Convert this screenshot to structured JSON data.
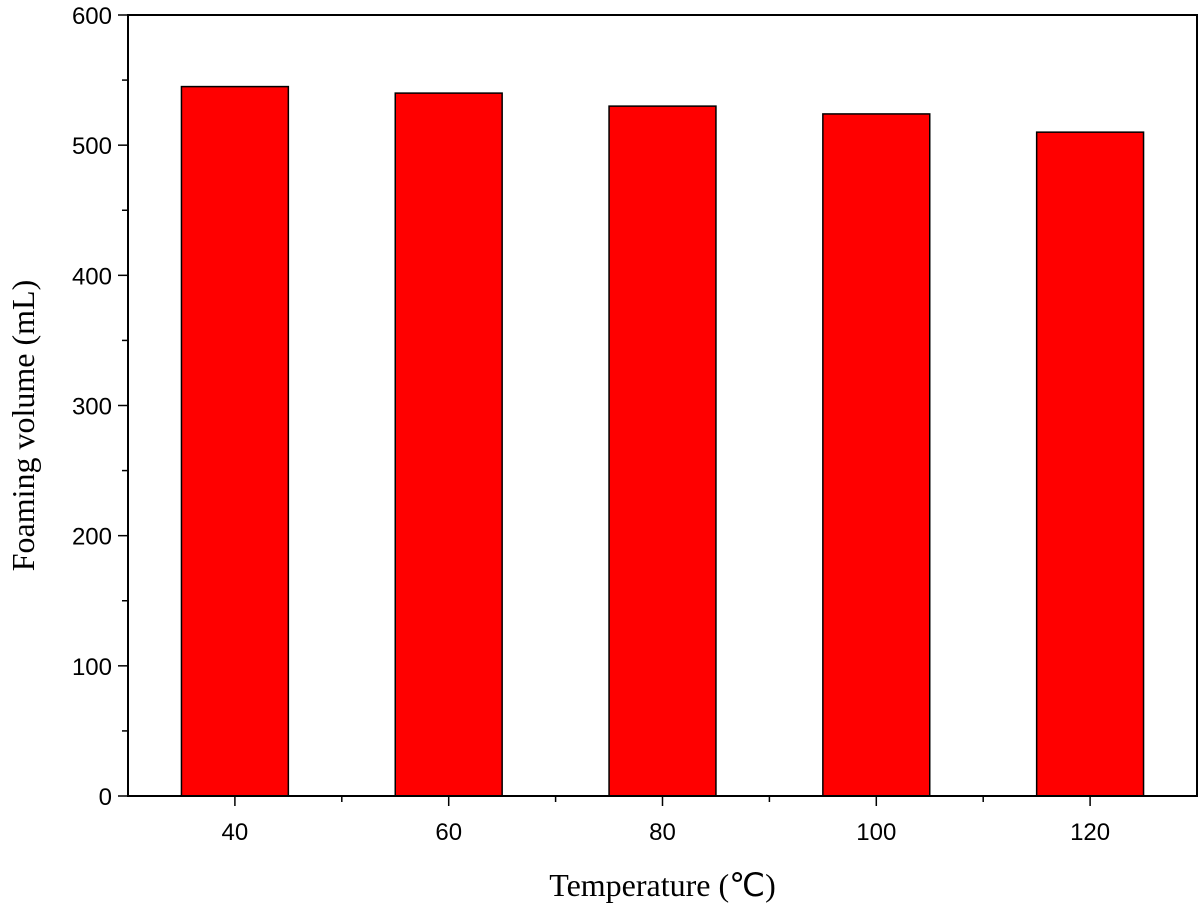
{
  "chart_data": {
    "type": "bar",
    "categories": [
      "40",
      "60",
      "80",
      "100",
      "120"
    ],
    "values": [
      545,
      540,
      530,
      524,
      510
    ],
    "title": "",
    "xlabel": "Temperature (℃)",
    "ylabel": "Foaming volume (mL)",
    "ylim": [
      0,
      600
    ],
    "yticks": [
      "0",
      "100",
      "200",
      "300",
      "400",
      "500",
      "600"
    ],
    "bar_color": "#ff0000",
    "grid": false,
    "legend": "none"
  }
}
